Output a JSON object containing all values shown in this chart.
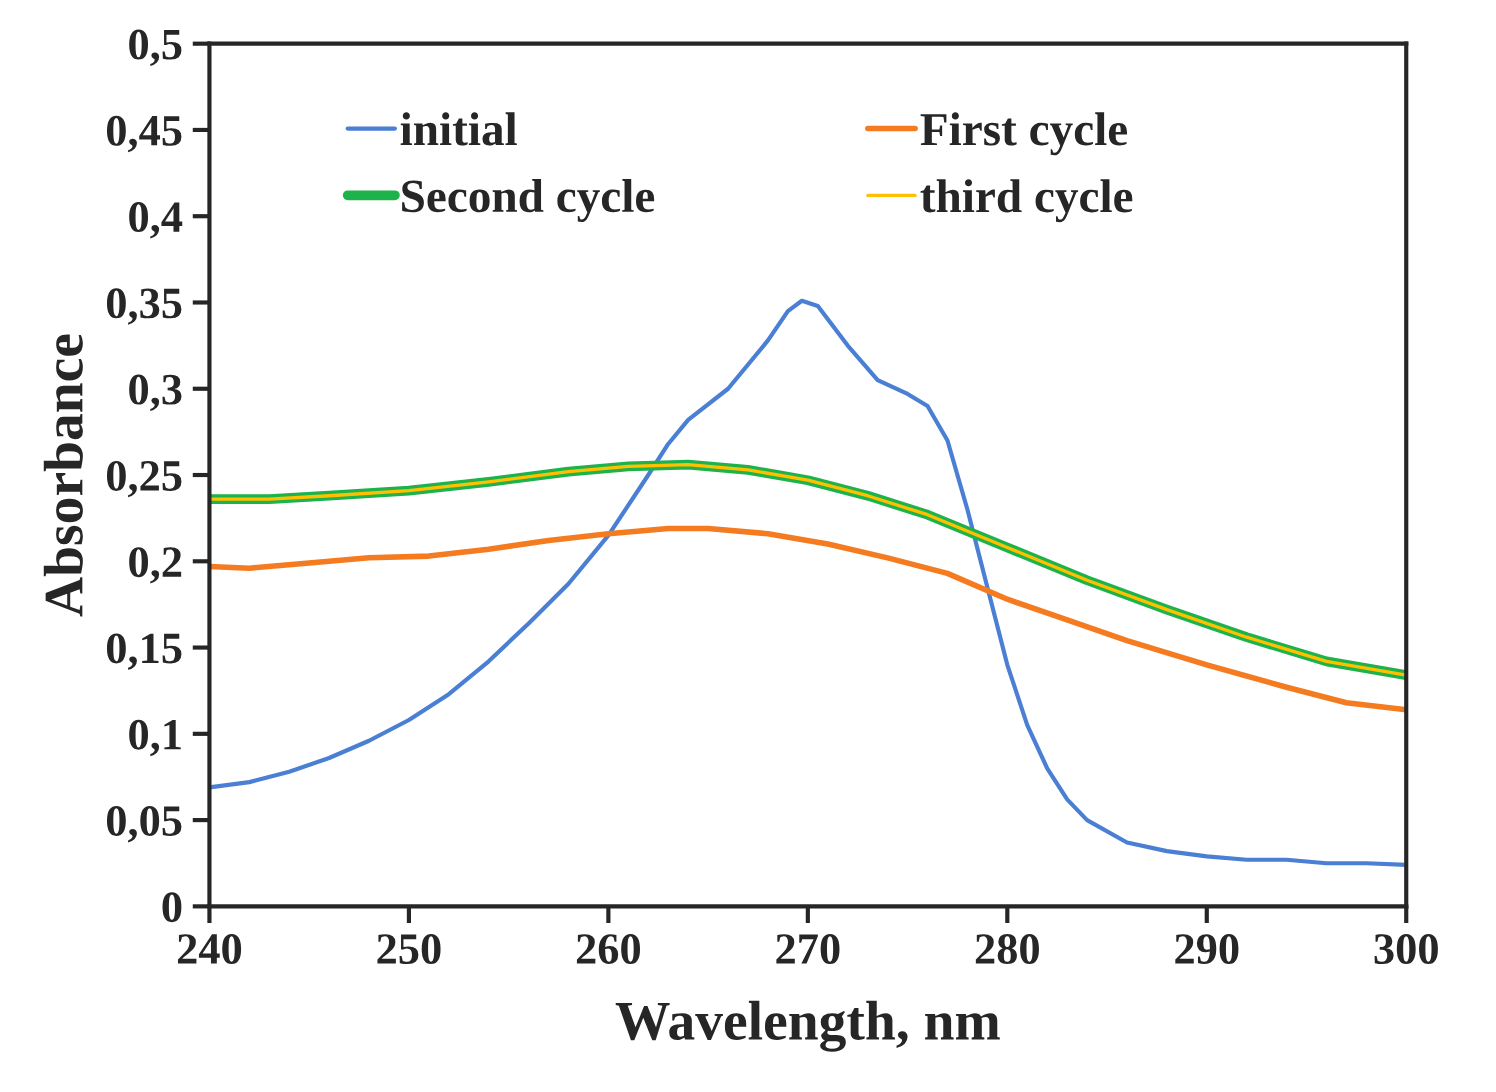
{
  "chart_data": {
    "type": "line",
    "xlabel": "Wavelength, nm",
    "ylabel": "Absorbance",
    "xlim": [
      240,
      300
    ],
    "xticks": [
      240,
      250,
      260,
      270,
      280,
      290,
      300
    ],
    "ylim": [
      0,
      0.5
    ],
    "yticks": [
      0,
      {
        "value": 0.05,
        "label": "0,05"
      },
      {
        "value": 0.1,
        "label": "0,1"
      },
      {
        "value": 0.15,
        "label": "0,15"
      },
      {
        "value": 0.2,
        "label": "0,2"
      },
      {
        "value": 0.25,
        "label": "0,25"
      },
      {
        "value": 0.3,
        "label": "0,3"
      },
      {
        "value": 0.35,
        "label": "0,35"
      },
      {
        "value": 0.4,
        "label": "0,4"
      },
      {
        "value": 0.45,
        "label": "0,45"
      },
      {
        "value": 0.5,
        "label": "0,5"
      }
    ],
    "grid": false,
    "legend": "top left",
    "marker": "none",
    "line_style": "solid",
    "series": [
      {
        "name": "initial",
        "color": "#4a7fd4",
        "x": [
          240,
          242,
          244,
          246,
          248,
          250,
          252,
          254,
          256,
          258,
          260,
          262,
          263,
          264,
          266,
          268,
          269,
          269.7,
          270.5,
          272,
          273.5,
          275,
          276,
          277,
          278,
          279,
          280,
          281,
          282,
          283,
          284,
          286,
          288,
          290,
          292,
          294,
          296,
          298,
          300
        ],
        "values": [
          0.069,
          0.072,
          0.078,
          0.086,
          0.096,
          0.108,
          0.123,
          0.142,
          0.164,
          0.187,
          0.215,
          0.25,
          0.268,
          0.282,
          0.3,
          0.328,
          0.345,
          0.351,
          0.348,
          0.325,
          0.305,
          0.297,
          0.29,
          0.27,
          0.23,
          0.185,
          0.14,
          0.105,
          0.08,
          0.062,
          0.05,
          0.037,
          0.032,
          0.029,
          0.027,
          0.027,
          0.025,
          0.025,
          0.024
        ]
      },
      {
        "name": "First cycle",
        "color": "#f47b20",
        "x": [
          240,
          242,
          245,
          248,
          251,
          254,
          257,
          260,
          263,
          265,
          268,
          271,
          274,
          277,
          280,
          283,
          286,
          290,
          294,
          297,
          300
        ],
        "values": [
          0.197,
          0.196,
          0.199,
          0.202,
          0.203,
          0.207,
          0.212,
          0.216,
          0.219,
          0.219,
          0.216,
          0.21,
          0.202,
          0.193,
          0.178,
          0.166,
          0.154,
          0.14,
          0.127,
          0.118,
          0.114
        ]
      },
      {
        "name": "Second cycle",
        "color": "#1db34a",
        "x": [
          240,
          243,
          246,
          250,
          254,
          258,
          261,
          264,
          267,
          270,
          273,
          276,
          280,
          284,
          288,
          292,
          296,
          300
        ],
        "values": [
          0.236,
          0.236,
          0.238,
          0.241,
          0.246,
          0.252,
          0.255,
          0.256,
          0.253,
          0.247,
          0.238,
          0.227,
          0.208,
          0.189,
          0.172,
          0.156,
          0.142,
          0.134
        ]
      },
      {
        "name": "third cycle",
        "color": "#ffc000",
        "x": [
          240,
          243,
          246,
          250,
          254,
          258,
          261,
          264,
          267,
          270,
          273,
          276,
          280,
          284,
          288,
          292,
          296,
          300
        ],
        "values": [
          0.236,
          0.236,
          0.238,
          0.241,
          0.246,
          0.252,
          0.255,
          0.256,
          0.253,
          0.247,
          0.238,
          0.227,
          0.208,
          0.189,
          0.172,
          0.156,
          0.142,
          0.134
        ]
      }
    ]
  }
}
